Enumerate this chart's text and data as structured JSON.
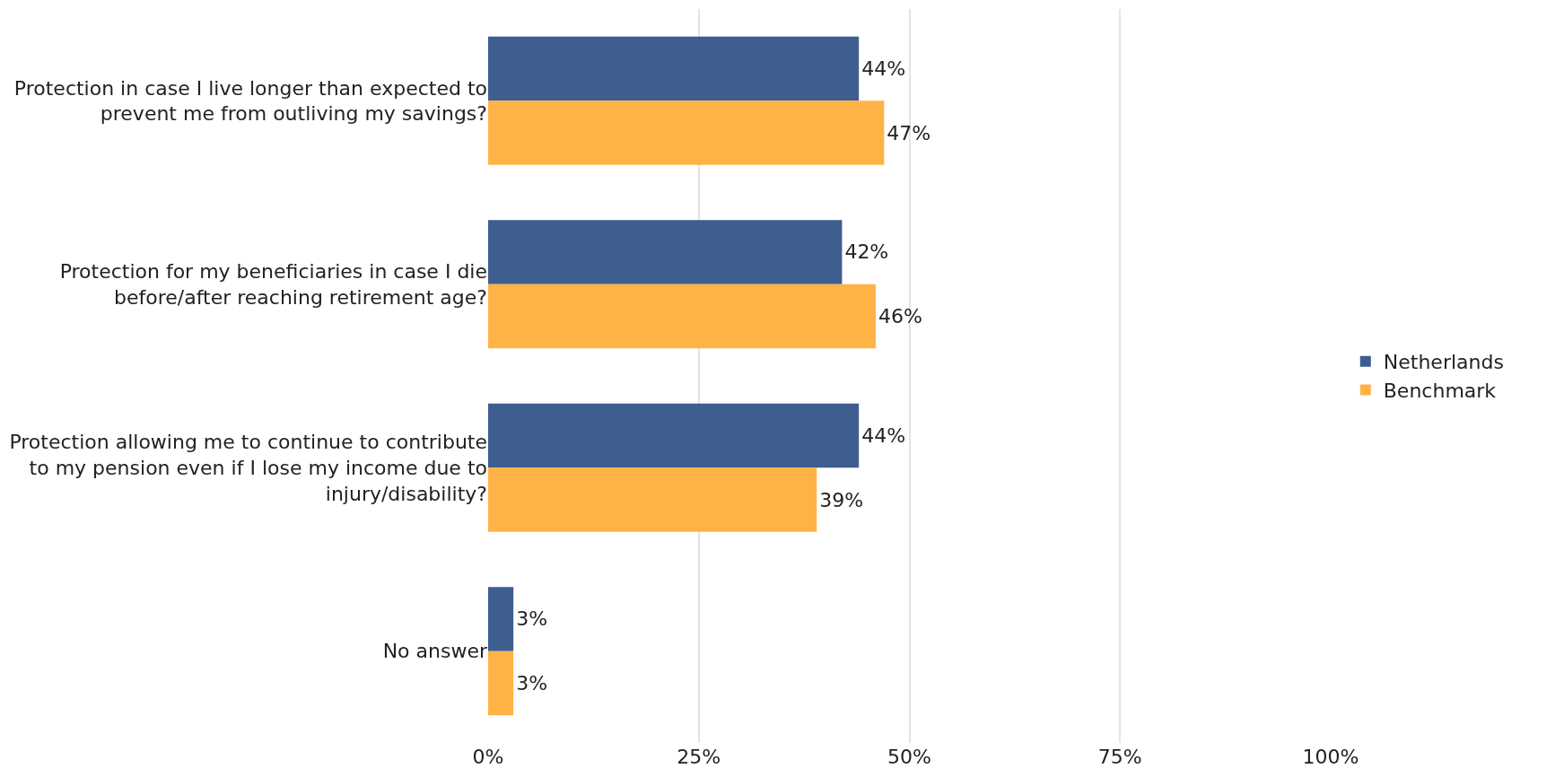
{
  "chart_data": {
    "type": "bar",
    "orientation": "horizontal",
    "categories": [
      "Protection in case I live longer than expected to prevent me from outliving my savings?",
      "Protection for my beneficiaries in case I die before/after reaching retirement age?",
      "Protection allowing me to continue to contribute to my pension even if I lose my income due to injury/disability?",
      "No answer"
    ],
    "series": [
      {
        "name": "Netherlands",
        "color": "#3d5e8f",
        "values": [
          44,
          42,
          44,
          3
        ],
        "value_labels": [
          "44%",
          "42%",
          "44%",
          "3%"
        ]
      },
      {
        "name": "Benchmark",
        "color": "#ffb347",
        "values": [
          47,
          46,
          39,
          3
        ],
        "value_labels": [
          "47%",
          "46%",
          "39%",
          "3%"
        ]
      }
    ],
    "xlim": [
      0,
      100
    ],
    "xticks": [
      {
        "value": 0,
        "label": "0%"
      },
      {
        "value": 25,
        "label": "25%"
      },
      {
        "value": 50,
        "label": "50%"
      },
      {
        "value": 75,
        "label": "75%"
      },
      {
        "value": 100,
        "label": "100%"
      }
    ],
    "grid": "x",
    "legend": "right"
  }
}
